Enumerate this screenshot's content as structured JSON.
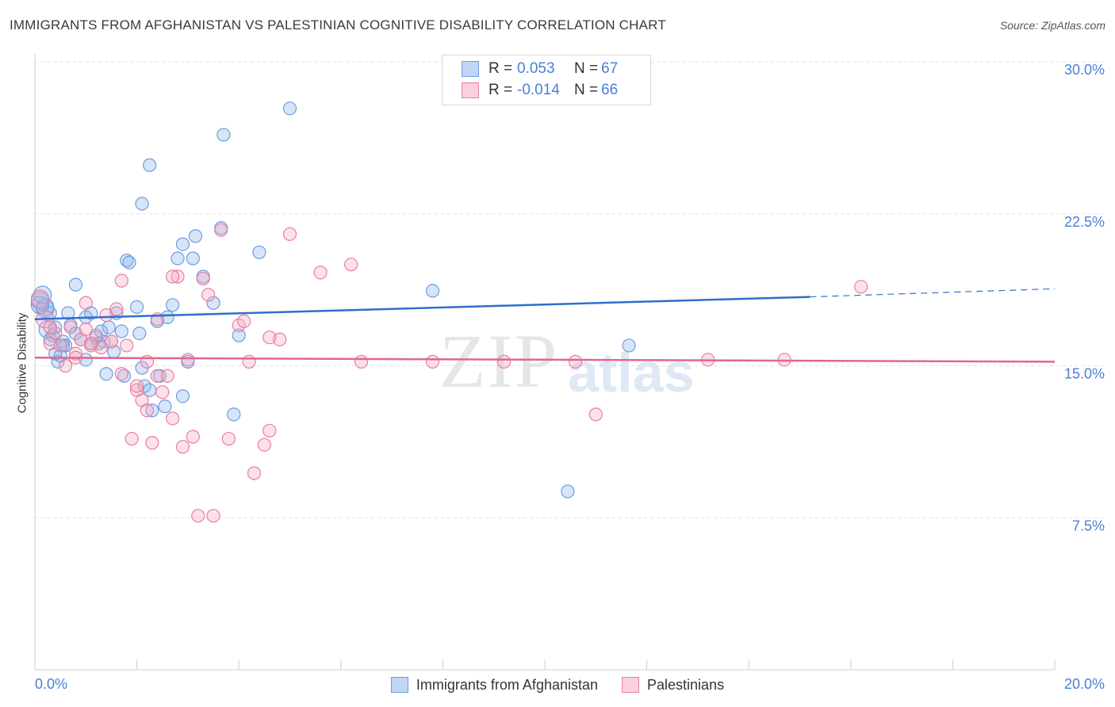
{
  "chart_data": {
    "type": "scatter",
    "title": "IMMIGRANTS FROM AFGHANISTAN VS PALESTINIAN COGNITIVE DISABILITY CORRELATION CHART",
    "source": "Source: ZipAtlas.com",
    "ylabel": "Cognitive Disability",
    "xlim": [
      0,
      20
    ],
    "ylim": [
      0,
      30
    ],
    "x_tick_labels": [
      "0.0%",
      "20.0%"
    ],
    "y_ticks": [
      {
        "value": 7.5,
        "label": "7.5%"
      },
      {
        "value": 15.0,
        "label": "15.0%"
      },
      {
        "value": 22.5,
        "label": "22.5%"
      },
      {
        "value": 30.0,
        "label": "30.0%"
      }
    ],
    "legend": [
      {
        "r_label": "R =",
        "r_value": "0.053",
        "n_label": "N =",
        "n_value": "67"
      },
      {
        "r_label": "R =",
        "r_value": "-0.014",
        "n_label": "N =",
        "n_value": "66"
      }
    ],
    "watermark": {
      "zip": "ZIP",
      "atlas": "atlas"
    },
    "series": [
      {
        "name": "Immigrants from Afghanistan",
        "color": "#6b9de0",
        "fill": "rgba(140,180,235,0.35)",
        "trend": {
          "x0": 0,
          "y0": 17.3,
          "x1": 15.2,
          "y1": 18.4,
          "dash_x1": 20,
          "dash_y1": 18.8
        },
        "points": [
          [
            0.1,
            18.2
          ],
          [
            0.2,
            17.8
          ],
          [
            0.3,
            17.6
          ],
          [
            0.25,
            16.8
          ],
          [
            0.35,
            16.5
          ],
          [
            0.4,
            16.9
          ],
          [
            0.45,
            15.2
          ],
          [
            0.5,
            15.5
          ],
          [
            0.55,
            16.2
          ],
          [
            0.6,
            16.0
          ],
          [
            0.7,
            17.0
          ],
          [
            0.8,
            16.6
          ],
          [
            0.65,
            17.6
          ],
          [
            0.9,
            16.3
          ],
          [
            1.0,
            17.4
          ],
          [
            1.1,
            16.1
          ],
          [
            1.2,
            16.4
          ],
          [
            1.3,
            16.7
          ],
          [
            1.35,
            16.2
          ],
          [
            1.45,
            16.9
          ],
          [
            1.6,
            17.6
          ],
          [
            1.7,
            16.7
          ],
          [
            1.8,
            20.2
          ],
          [
            1.85,
            20.1
          ],
          [
            2.0,
            17.9
          ],
          [
            2.05,
            16.6
          ],
          [
            2.1,
            14.9
          ],
          [
            2.15,
            14.0
          ],
          [
            2.4,
            17.2
          ],
          [
            2.45,
            14.5
          ],
          [
            2.6,
            17.4
          ],
          [
            2.7,
            18.0
          ],
          [
            2.8,
            20.3
          ],
          [
            2.9,
            13.5
          ],
          [
            3.0,
            15.2
          ],
          [
            3.1,
            20.3
          ],
          [
            3.15,
            21.4
          ],
          [
            3.3,
            19.4
          ],
          [
            3.5,
            18.1
          ],
          [
            3.65,
            21.8
          ],
          [
            3.7,
            26.4
          ],
          [
            3.9,
            12.6
          ],
          [
            4.0,
            16.5
          ],
          [
            4.4,
            20.6
          ],
          [
            5.0,
            27.7
          ],
          [
            7.8,
            18.7
          ],
          [
            2.25,
            24.9
          ],
          [
            2.55,
            13.0
          ],
          [
            1.4,
            14.6
          ],
          [
            0.8,
            19.0
          ],
          [
            2.3,
            12.8
          ],
          [
            0.4,
            15.6
          ],
          [
            1.25,
            16.1
          ],
          [
            1.75,
            14.5
          ],
          [
            2.1,
            23.0
          ],
          [
            0.2,
            17.9
          ],
          [
            1.0,
            15.3
          ],
          [
            2.25,
            13.8
          ],
          [
            2.9,
            21.0
          ],
          [
            11.65,
            16.0
          ],
          [
            10.45,
            8.8
          ],
          [
            0.15,
            18.5
          ],
          [
            0.55,
            16.0
          ],
          [
            1.1,
            17.6
          ],
          [
            1.55,
            15.7
          ],
          [
            0.3,
            16.3
          ],
          [
            0.1,
            18.0
          ]
        ]
      },
      {
        "name": "Palestinians",
        "color": "#e87ea0",
        "fill": "rgba(245,170,195,0.35)",
        "trend": {
          "x0": 0,
          "y0": 15.4,
          "x1": 20,
          "y1": 15.2
        },
        "points": [
          [
            0.1,
            18.3
          ],
          [
            0.2,
            17.3
          ],
          [
            0.3,
            16.1
          ],
          [
            0.4,
            16.6
          ],
          [
            0.5,
            16.0
          ],
          [
            0.6,
            15.0
          ],
          [
            0.7,
            16.9
          ],
          [
            0.8,
            15.6
          ],
          [
            0.9,
            16.3
          ],
          [
            1.0,
            18.1
          ],
          [
            1.1,
            16.0
          ],
          [
            1.2,
            16.5
          ],
          [
            1.3,
            15.9
          ],
          [
            1.4,
            17.5
          ],
          [
            1.5,
            16.2
          ],
          [
            1.6,
            17.8
          ],
          [
            1.7,
            14.6
          ],
          [
            1.8,
            16.0
          ],
          [
            1.9,
            11.4
          ],
          [
            2.0,
            13.8
          ],
          [
            2.1,
            13.3
          ],
          [
            2.2,
            15.2
          ],
          [
            2.3,
            11.2
          ],
          [
            2.4,
            17.3
          ],
          [
            2.5,
            13.7
          ],
          [
            2.6,
            14.5
          ],
          [
            2.7,
            12.4
          ],
          [
            2.8,
            19.4
          ],
          [
            2.9,
            11.0
          ],
          [
            3.0,
            15.3
          ],
          [
            3.1,
            11.5
          ],
          [
            3.2,
            7.6
          ],
          [
            3.3,
            19.3
          ],
          [
            3.5,
            7.6
          ],
          [
            3.65,
            21.7
          ],
          [
            3.8,
            11.4
          ],
          [
            4.0,
            17.0
          ],
          [
            4.1,
            17.2
          ],
          [
            4.2,
            15.2
          ],
          [
            4.3,
            9.7
          ],
          [
            4.5,
            11.1
          ],
          [
            4.6,
            11.8
          ],
          [
            4.8,
            16.3
          ],
          [
            5.0,
            21.5
          ],
          [
            5.6,
            19.6
          ],
          [
            6.2,
            20.0
          ],
          [
            6.4,
            15.2
          ],
          [
            7.8,
            15.2
          ],
          [
            9.2,
            15.2
          ],
          [
            10.6,
            15.2
          ],
          [
            11.0,
            12.6
          ],
          [
            13.2,
            15.3
          ],
          [
            14.7,
            15.3
          ],
          [
            16.2,
            18.9
          ],
          [
            1.0,
            16.8
          ],
          [
            0.8,
            15.4
          ],
          [
            1.5,
            16.2
          ],
          [
            2.0,
            14.0
          ],
          [
            2.4,
            14.5
          ],
          [
            3.4,
            18.5
          ],
          [
            4.6,
            16.4
          ],
          [
            1.7,
            19.2
          ],
          [
            2.7,
            19.4
          ],
          [
            2.2,
            12.8
          ],
          [
            1.1,
            16.1
          ],
          [
            0.3,
            16.9
          ]
        ]
      }
    ]
  }
}
